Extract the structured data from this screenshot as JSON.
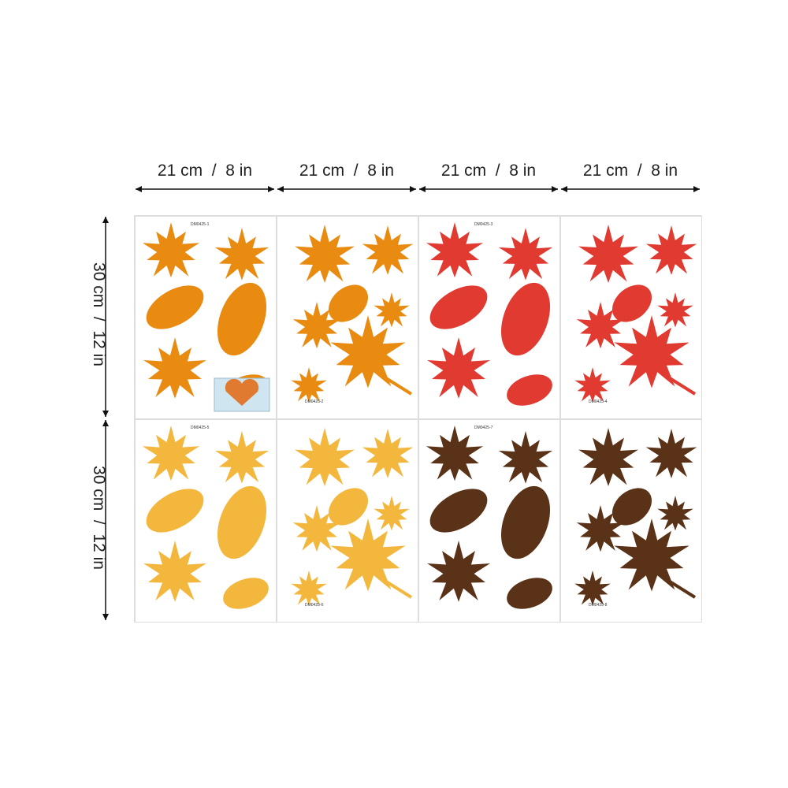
{
  "dimensions": {
    "width_labels": [
      "21 cm  /  8 in",
      "21 cm  /  8 in",
      "21 cm  /  8 in",
      "21 cm  /  8 in"
    ],
    "height_labels": [
      "30 cm  /  12 in",
      "30 cm  /  12 in"
    ]
  },
  "sheets": [
    {
      "code": "DM0425-1",
      "color": "#e98b10"
    },
    {
      "code": "DM0425-2",
      "color": "#e98b10"
    },
    {
      "code": "DM0425-3",
      "color": "#e03a31"
    },
    {
      "code": "DM0425-4",
      "color": "#e03a31"
    },
    {
      "code": "DM0425-5",
      "color": "#f3b73d"
    },
    {
      "code": "DM0425-6",
      "color": "#f3b73d"
    },
    {
      "code": "DM0425-7",
      "color": "#5a3218"
    },
    {
      "code": "DM0425-8",
      "color": "#5a3218"
    }
  ]
}
